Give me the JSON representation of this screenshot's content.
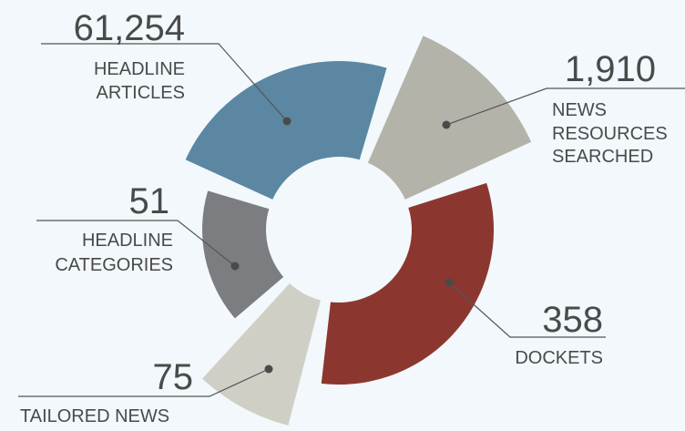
{
  "items": [
    {
      "value": "61,254",
      "label": [
        "HEADLINE",
        "ARTICLES"
      ]
    },
    {
      "value": "1,910",
      "label": [
        "NEWS",
        "RESOURCES",
        "SEARCHED"
      ]
    },
    {
      "value": "358",
      "label": [
        "DOCKETS"
      ]
    },
    {
      "value": "75",
      "label": [
        "TAILORED NEWS"
      ]
    },
    {
      "value": "51",
      "label": [
        "HEADLINE",
        "CATEGORIES"
      ]
    }
  ]
}
